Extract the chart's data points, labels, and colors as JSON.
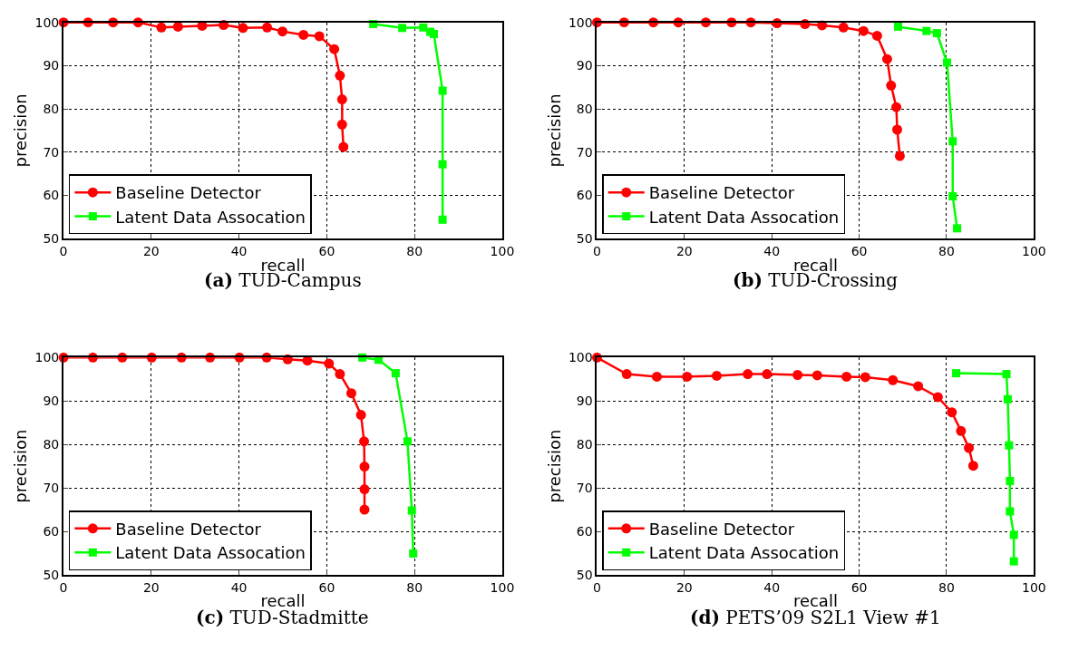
{
  "chart_data": [
    {
      "type": "line",
      "title": "(a) TUD-Campus",
      "xlabel": "recall",
      "ylabel": "precision",
      "xlim": [
        0,
        100
      ],
      "ylim": [
        50,
        100
      ],
      "xticks": [
        0,
        20,
        40,
        60,
        80,
        100
      ],
      "yticks": [
        50,
        60,
        70,
        80,
        90,
        100
      ],
      "grid": true,
      "legend": "bottom left",
      "line_style": "solid",
      "series": [
        {
          "name": "Baseline Detector",
          "color": "#ff0000",
          "marker": "circle",
          "x": [
            0,
            5.6,
            11.3,
            17.0,
            22.3,
            26.1,
            31.6,
            36.5,
            40.9,
            46.4,
            49.9,
            54.7,
            58.3,
            61.7,
            63.0,
            63.5,
            63.5,
            63.8
          ],
          "values": [
            100,
            100,
            100,
            100,
            98.8,
            99.0,
            99.2,
            99.4,
            98.7,
            98.8,
            97.9,
            97.1,
            96.8,
            93.8,
            87.7,
            82.2,
            76.4,
            71.2
          ]
        },
        {
          "name": "Latent Data Assocation",
          "color": "#00ff00",
          "marker": "square",
          "x": [
            70.6,
            77.2,
            82.0,
            83.6,
            84.4,
            86.4,
            86.4,
            86.4
          ],
          "values": [
            99.6,
            98.7,
            98.8,
            97.8,
            97.3,
            84.2,
            67.2,
            54.4
          ]
        }
      ]
    },
    {
      "type": "line",
      "title": "(b) TUD-Crossing",
      "xlabel": "recall",
      "ylabel": "precision",
      "xlim": [
        0,
        100
      ],
      "ylim": [
        50,
        100
      ],
      "xticks": [
        0,
        20,
        40,
        60,
        80,
        100
      ],
      "yticks": [
        50,
        60,
        70,
        80,
        90,
        100
      ],
      "grid": true,
      "legend": "bottom left",
      "line_style": "solid",
      "series": [
        {
          "name": "Baseline Detector",
          "color": "#ff0000",
          "marker": "circle",
          "x": [
            0,
            6.2,
            12.9,
            18.6,
            24.9,
            30.8,
            35.2,
            41.2,
            47.6,
            51.5,
            56.4,
            61.0,
            64.1,
            66.4,
            67.3,
            68.5,
            68.7,
            69.3
          ],
          "values": [
            100,
            100,
            100,
            100,
            100,
            100,
            100,
            99.8,
            99.6,
            99.3,
            98.8,
            98.0,
            96.9,
            91.5,
            85.4,
            80.4,
            75.2,
            69.1
          ]
        },
        {
          "name": "Latent Data Assocation",
          "color": "#00ff00",
          "marker": "square",
          "x": [
            68.9,
            75.4,
            77.8,
            80.1,
            81.4,
            81.4,
            82.4
          ],
          "values": [
            99.0,
            98.0,
            97.5,
            90.7,
            72.5,
            59.8,
            52.4
          ]
        }
      ]
    },
    {
      "type": "line",
      "title": "(c) TUD-Stadmitte",
      "xlabel": "recall",
      "ylabel": "precision",
      "xlim": [
        0,
        100
      ],
      "ylim": [
        50,
        100
      ],
      "xticks": [
        0,
        20,
        40,
        60,
        80,
        100
      ],
      "yticks": [
        50,
        60,
        70,
        80,
        90,
        100
      ],
      "grid": true,
      "legend": "bottom left",
      "line_style": "solid",
      "series": [
        {
          "name": "Baseline Detector",
          "color": "#ff0000",
          "marker": "circle",
          "x": [
            0,
            6.7,
            13.4,
            20.1,
            26.9,
            33.4,
            40.1,
            46.3,
            51.1,
            55.6,
            60.5,
            63.0,
            65.6,
            67.8,
            68.5,
            68.6,
            68.6,
            68.6
          ],
          "values": [
            100,
            100,
            100,
            100,
            100,
            100,
            100,
            100,
            99.6,
            99.3,
            98.6,
            96.2,
            91.8,
            86.8,
            80.7,
            74.9,
            69.7,
            65.0
          ]
        },
        {
          "name": "Latent Data Assocation",
          "color": "#00ff00",
          "marker": "square",
          "x": [
            68.1,
            71.8,
            75.7,
            78.4,
            79.4,
            79.7
          ],
          "values": [
            100,
            99.5,
            96.4,
            80.7,
            64.8,
            54.9
          ]
        }
      ]
    },
    {
      "type": "line",
      "title": "(d) PETS’09 S2L1 View #1",
      "xlabel": "recall",
      "ylabel": "precision",
      "xlim": [
        0,
        100
      ],
      "ylim": [
        50,
        100
      ],
      "xticks": [
        0,
        20,
        40,
        60,
        80,
        100
      ],
      "yticks": [
        50,
        60,
        70,
        80,
        90,
        100
      ],
      "grid": true,
      "legend": "bottom left",
      "line_style": "solid",
      "series": [
        {
          "name": "Baseline Detector",
          "color": "#ff0000",
          "marker": "circle",
          "x": [
            0,
            6.8,
            13.7,
            20.6,
            27.4,
            34.5,
            38.9,
            45.9,
            50.4,
            57.1,
            61.4,
            67.7,
            73.5,
            78.0,
            81.2,
            83.3,
            85.1,
            86.1
          ],
          "values": [
            100,
            96.2,
            95.6,
            95.6,
            95.8,
            96.2,
            96.2,
            96.0,
            95.9,
            95.6,
            95.5,
            94.8,
            93.4,
            90.9,
            87.4,
            83.1,
            79.2,
            75.1
          ]
        },
        {
          "name": "Latent Data Assocation",
          "color": "#00ff00",
          "marker": "square",
          "x": [
            82.2,
            93.7,
            94.0,
            94.3,
            94.5,
            94.5,
            95.4,
            95.4
          ],
          "values": [
            96.4,
            96.2,
            90.4,
            79.8,
            71.6,
            64.6,
            59.2,
            53.1
          ]
        }
      ]
    }
  ]
}
